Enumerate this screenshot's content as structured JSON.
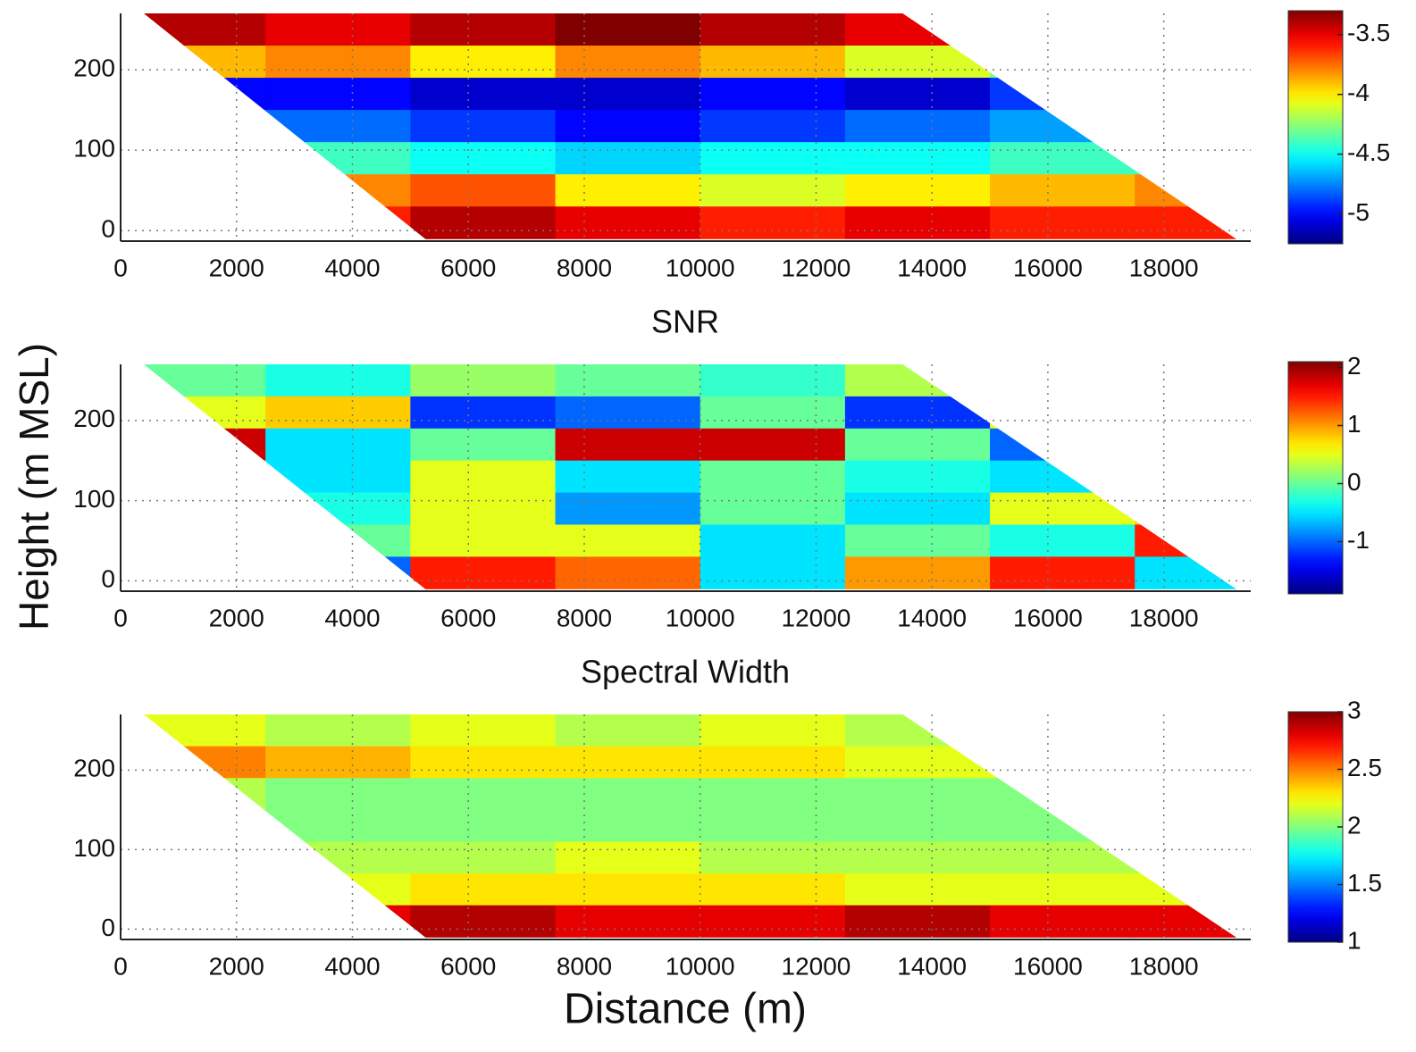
{
  "shared": {
    "ylabel": "Height (m MSL)",
    "xlabel": "Distance (m)"
  },
  "chart_data": [
    {
      "type": "heatmap",
      "colormap": "jet",
      "grid": true,
      "xlim": [
        0,
        19500
      ],
      "ylim": [
        -13,
        270
      ],
      "xticks": [
        0,
        2000,
        4000,
        6000,
        8000,
        10000,
        12000,
        14000,
        16000,
        18000
      ],
      "yticks": [
        0,
        100,
        200
      ],
      "x": [
        1250,
        3750,
        6250,
        8750,
        11250,
        13750,
        16250,
        18750
      ],
      "y": [
        250,
        210,
        170,
        130,
        90,
        50,
        10
      ],
      "z": [
        [
          -3.4,
          -3.5,
          -3.4,
          -3.3,
          -3.4,
          -3.5,
          -3.4,
          -3.4
        ],
        [
          -3.9,
          -3.8,
          -4.0,
          -3.8,
          -3.9,
          -4.1,
          -4.3,
          -4.3
        ],
        [
          -5.0,
          -5.0,
          -5.1,
          -5.1,
          -5.0,
          -5.1,
          -4.9,
          -4.8
        ],
        [
          -4.7,
          -4.8,
          -4.9,
          -5.0,
          -4.9,
          -4.8,
          -4.7,
          -4.7
        ],
        [
          -4.5,
          -4.4,
          -4.5,
          -4.6,
          -4.5,
          -4.5,
          -4.4,
          -4.4
        ],
        [
          -4.0,
          -3.8,
          -3.7,
          -4.0,
          -4.1,
          -4.0,
          -3.9,
          -3.8
        ],
        [
          -3.6,
          -3.6,
          -3.4,
          -3.5,
          -3.6,
          -3.5,
          -3.6,
          -3.6
        ]
      ],
      "clim": [
        -5.25,
        -3.3
      ],
      "cticks": [
        -3.5,
        -4,
        -4.5,
        -5
      ]
    },
    {
      "type": "heatmap",
      "colormap": "jet",
      "grid": true,
      "title": "SNR",
      "xlim": [
        0,
        19500
      ],
      "ylim": [
        -13,
        270
      ],
      "xticks": [
        0,
        2000,
        4000,
        6000,
        8000,
        10000,
        12000,
        14000,
        16000,
        18000
      ],
      "yticks": [
        0,
        100,
        200
      ],
      "x": [
        1250,
        3750,
        6250,
        8750,
        11250,
        13750,
        16250,
        18750
      ],
      "y": [
        250,
        210,
        170,
        130,
        90,
        50,
        10
      ],
      "z": [
        [
          0,
          -0.3,
          0.2,
          0,
          -0.2,
          0.3,
          0,
          0
        ],
        [
          0.5,
          0.8,
          -1.2,
          -1,
          0,
          -1.2,
          0.5,
          -1
        ],
        [
          1.8,
          -0.5,
          0,
          1.8,
          1.8,
          0,
          -1,
          -1
        ],
        [
          0,
          -0.5,
          0.5,
          -0.5,
          0,
          -0.3,
          -0.5,
          0
        ],
        [
          -0.5,
          -0.3,
          0.5,
          -0.8,
          0,
          -0.5,
          0.5,
          0.8
        ],
        [
          0,
          0,
          0.5,
          0.5,
          -0.5,
          0,
          -0.3,
          1.5
        ],
        [
          -1,
          -1,
          1.5,
          1.2,
          -0.5,
          1,
          1.5,
          -0.5
        ]
      ],
      "clim": [
        -1.9,
        2.1
      ],
      "cticks": [
        2,
        1,
        0,
        -1
      ]
    },
    {
      "type": "heatmap",
      "colormap": "jet",
      "grid": true,
      "title": "Spectral Width",
      "xlim": [
        0,
        19500
      ],
      "ylim": [
        -13,
        270
      ],
      "xticks": [
        0,
        2000,
        4000,
        6000,
        8000,
        10000,
        12000,
        14000,
        16000,
        18000
      ],
      "yticks": [
        0,
        100,
        200
      ],
      "x": [
        1250,
        3750,
        6250,
        8750,
        11250,
        13750,
        16250,
        18750
      ],
      "y": [
        250,
        210,
        170,
        130,
        90,
        50,
        10
      ],
      "z": [
        [
          2.2,
          2.1,
          2.2,
          2.1,
          2.2,
          2.1,
          2.1,
          2.1
        ],
        [
          2.5,
          2.4,
          2.3,
          2.3,
          2.3,
          2.2,
          2.2,
          2.2
        ],
        [
          2.1,
          2.0,
          2.0,
          2.0,
          2.0,
          2.0,
          2.0,
          2.0
        ],
        [
          2.0,
          2.0,
          2.0,
          2.0,
          2.0,
          2.0,
          2.0,
          2.0
        ],
        [
          2.1,
          2.1,
          2.1,
          2.2,
          2.1,
          2.1,
          2.1,
          2.1
        ],
        [
          2.2,
          2.2,
          2.3,
          2.3,
          2.3,
          2.2,
          2.2,
          2.2
        ],
        [
          2.8,
          2.8,
          2.9,
          2.8,
          2.8,
          2.9,
          2.8,
          2.8
        ]
      ],
      "clim": [
        1,
        3
      ],
      "cticks": [
        3,
        2.5,
        2,
        1.5,
        1
      ]
    }
  ]
}
